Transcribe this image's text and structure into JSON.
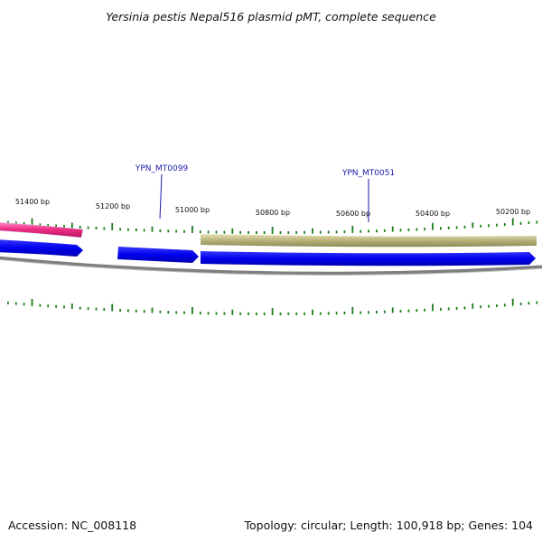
{
  "map": {
    "title": "Yersinia pestis Nepal516 plasmid pMT, complete sequence",
    "accession": "Accession: NC_008118",
    "stats": "Topology: circular; Length: 100,918 bp; Genes: 104"
  },
  "ticks": [
    {
      "label": "51400 bp"
    },
    {
      "label": "51200 bp"
    },
    {
      "label": "51000 bp"
    },
    {
      "label": "50800 bp"
    },
    {
      "label": "50600 bp"
    },
    {
      "label": "50400 bp"
    },
    {
      "label": "50200 bp"
    }
  ],
  "genes": [
    {
      "label": "YPN_MT0099"
    },
    {
      "label": "YPN_MT0051"
    }
  ],
  "colors": {
    "forward_feature": "#ee2f86",
    "cds": "#0000ee",
    "olive_feature": "#b7b27a",
    "backbone": "#7f7f7f",
    "tick": "#1e7a1e",
    "gene_label": "#1a1aa8"
  }
}
